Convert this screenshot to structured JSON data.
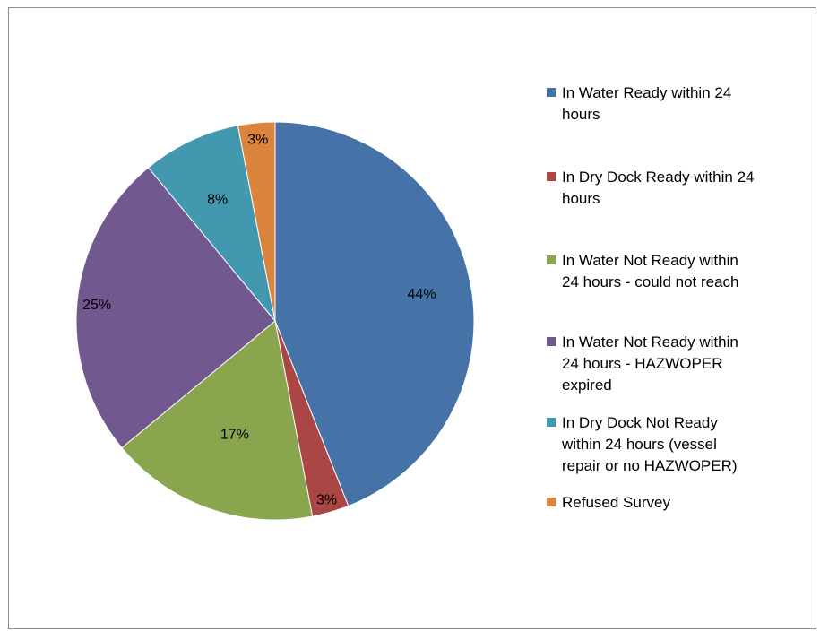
{
  "chart_data": {
    "type": "pie",
    "title": "",
    "legend_position": "right",
    "slices": [
      {
        "name": "In Water Ready within 24 hours",
        "value": 44,
        "label": "44%",
        "color": "#4572A7"
      },
      {
        "name": "In Dry Dock Ready within 24 hours",
        "value": 3,
        "label": "3%",
        "color": "#AA4643"
      },
      {
        "name": "In Water Not Ready within 24 hours - could not reach",
        "value": 17,
        "label": "17%",
        "color": "#89A54E"
      },
      {
        "name": "In Water Not Ready within 24 hours - HAZWOPER expired",
        "value": 25,
        "label": "25%",
        "color": "#71588F"
      },
      {
        "name": "In Dry Dock Not Ready within 24 hours (vessel repair or no HAZWOPER)",
        "value": 8,
        "label": "8%",
        "color": "#4198AF"
      },
      {
        "name": "Refused Survey",
        "value": 3,
        "label": "3%",
        "color": "#DB843D"
      }
    ]
  },
  "legend": {
    "items": [
      {
        "text": "In Water Ready within 24\nhours",
        "color": "#4572A7"
      },
      {
        "text": "In Dry Dock Ready within 24\nhours",
        "color": "#AA4643"
      },
      {
        "text": "In Water Not Ready within\n24 hours - could not reach",
        "color": "#89A54E"
      },
      {
        "text": "In Water Not Ready within\n24 hours - HAZWOPER\nexpired",
        "color": "#71588F"
      },
      {
        "text": "In Dry Dock Not Ready\nwithin 24 hours (vessel\nrepair or no HAZWOPER)",
        "color": "#4198AF"
      },
      {
        "text": "Refused Survey",
        "color": "#DB843D"
      }
    ]
  }
}
